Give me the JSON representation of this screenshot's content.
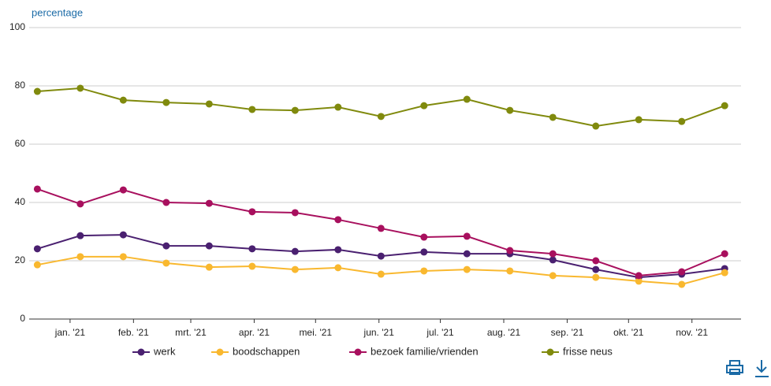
{
  "chart_data": {
    "type": "line",
    "y_label": "percentage",
    "x": [
      -16,
      5,
      26,
      47,
      68,
      89,
      110,
      131,
      152,
      173,
      194,
      215,
      236,
      257,
      278,
      299,
      320
    ],
    "xlim": [
      -20,
      328
    ],
    "xticks": [
      {
        "value": 0,
        "label": "jan. '21"
      },
      {
        "value": 31,
        "label": "feb. '21"
      },
      {
        "value": 59,
        "label": "mrt. '21"
      },
      {
        "value": 90,
        "label": "apr. '21"
      },
      {
        "value": 120,
        "label": "mei. '21"
      },
      {
        "value": 151,
        "label": "jun. '21"
      },
      {
        "value": 181,
        "label": "jul. '21"
      },
      {
        "value": 212,
        "label": "aug. '21"
      },
      {
        "value": 243,
        "label": "sep. '21"
      },
      {
        "value": 273,
        "label": "okt. '21"
      },
      {
        "value": 304,
        "label": "nov. '21"
      }
    ],
    "ylim": [
      0,
      100
    ],
    "yticks": [
      0,
      20,
      40,
      60,
      80,
      100
    ],
    "grid": true,
    "series": [
      {
        "name": "werk",
        "color": "#4a2070",
        "values": [
          24.1,
          28.6,
          28.9,
          25.1,
          25.1,
          24.1,
          23.2,
          23.8,
          21.6,
          23,
          22.4,
          22.4,
          20.3,
          17,
          14.3,
          15.4,
          17.3
        ]
      },
      {
        "name": "boodschappen",
        "color": "#f9b82f",
        "values": [
          18.6,
          21.4,
          21.4,
          19.2,
          17.8,
          18.1,
          17,
          17.6,
          15.4,
          16.5,
          17,
          16.5,
          14.9,
          14.3,
          13,
          11.9,
          15.9
        ]
      },
      {
        "name": "bezoek familie/vrienden",
        "color": "#a8105e",
        "values": [
          44.6,
          39.5,
          44.3,
          40,
          39.7,
          36.8,
          36.5,
          34.1,
          31.1,
          28.1,
          28.4,
          23.5,
          22.4,
          20,
          14.9,
          16.2,
          22.4
        ]
      },
      {
        "name": "frisse neus",
        "color": "#808a0d",
        "values": [
          78.1,
          79.2,
          75.1,
          74.3,
          73.8,
          71.9,
          71.6,
          72.7,
          69.5,
          73.2,
          75.4,
          71.6,
          69.2,
          66.2,
          68.4,
          67.8,
          73.2
        ]
      }
    ]
  }
}
